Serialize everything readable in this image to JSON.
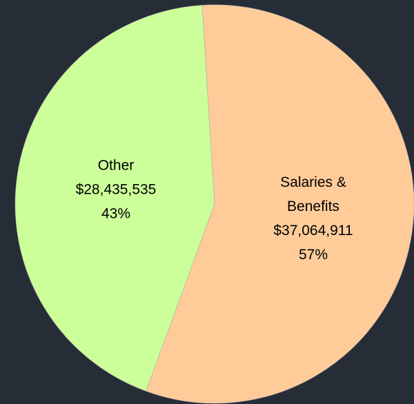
{
  "chart_data": {
    "type": "pie",
    "categories": [
      "Salaries & Benefits",
      "Other"
    ],
    "values": [
      37064911,
      28435535
    ],
    "value_labels": [
      "$37,064,911",
      "$28,435,535"
    ],
    "percents": [
      57,
      43
    ],
    "percent_labels": [
      "57%",
      "43%"
    ],
    "colors": [
      "#ffcc99",
      "#ccff99"
    ]
  }
}
